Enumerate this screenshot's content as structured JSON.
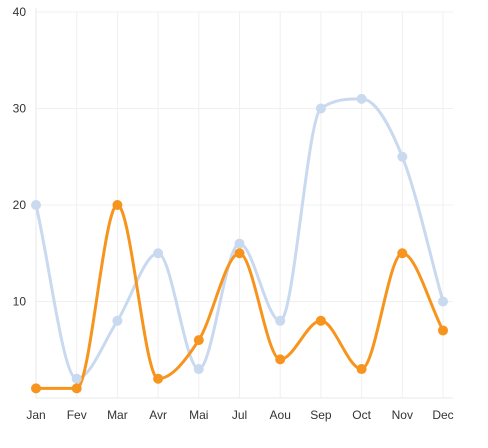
{
  "chart_data": {
    "type": "line",
    "title": "",
    "xlabel": "",
    "ylabel": "",
    "categories": [
      "Jan",
      "Fev",
      "Mar",
      "Avr",
      "Mai",
      "Jul",
      "Aou",
      "Sep",
      "Oct",
      "Nov",
      "Dec"
    ],
    "ylim": [
      0,
      40
    ],
    "yticks": [
      "10",
      "20",
      "30",
      "40"
    ],
    "grid": true,
    "smooth": true,
    "series": [
      {
        "color": "#c9d9ef",
        "values": [
          20,
          2,
          8,
          15,
          3,
          16,
          8,
          30,
          31,
          25,
          10
        ]
      },
      {
        "color": "#f7941d",
        "values": [
          1,
          1,
          20,
          2,
          6,
          15,
          4,
          8,
          3,
          15,
          7
        ]
      }
    ]
  }
}
